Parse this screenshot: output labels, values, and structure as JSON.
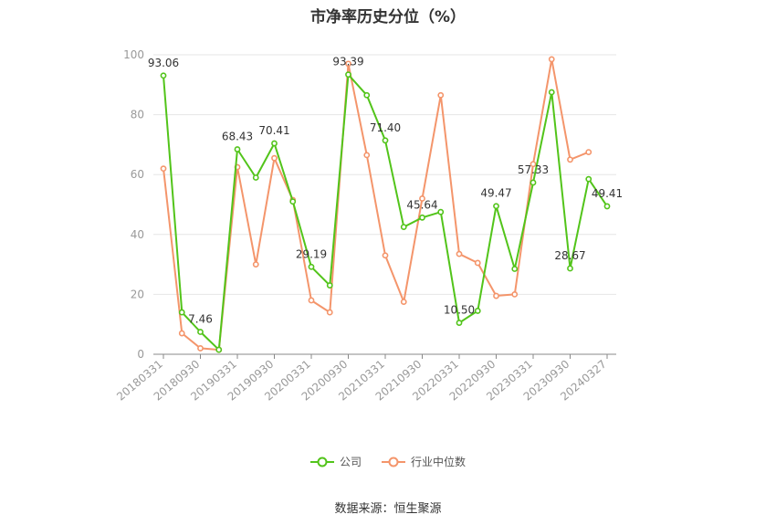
{
  "chart_data": {
    "type": "line",
    "title": "市净率历史分位（%）",
    "ylim": [
      0,
      100
    ],
    "yticks": [
      0,
      20,
      40,
      60,
      80,
      100
    ],
    "tick_labels": [
      "20180331",
      "20180930",
      "20190331",
      "20190930",
      "20200331",
      "20200930",
      "20210331",
      "20210930",
      "20220331",
      "20220930",
      "20230331",
      "20230930",
      "20240327"
    ],
    "grid": true,
    "legend_position": "bottom",
    "series": [
      {
        "name": "公司",
        "color": "#52c41a",
        "values": [
          93.06,
          14.0,
          7.46,
          1.5,
          68.43,
          59.0,
          70.41,
          51.0,
          29.19,
          23.0,
          93.39,
          86.5,
          71.4,
          42.5,
          45.64,
          47.5,
          10.5,
          14.5,
          49.47,
          28.5,
          57.33,
          87.5,
          28.67,
          58.5,
          49.41
        ],
        "labels": {
          "0": "93.06",
          "2": "7.46",
          "4": "68.43",
          "6": "70.41",
          "8": "29.19",
          "10": "93.39",
          "12": "71.40",
          "14": "45.64",
          "16": "10.50",
          "18": "49.47",
          "20": "57.33",
          "22": "28.67",
          "24": "49.41"
        }
      },
      {
        "name": "行业中位数",
        "color": "#f4956b",
        "values": [
          62.0,
          7.0,
          2.0,
          1.5,
          62.5,
          30.0,
          65.5,
          51.5,
          18.0,
          14.0,
          97.0,
          66.5,
          33.0,
          17.5,
          52.0,
          86.5,
          33.5,
          30.5,
          19.5,
          20.0,
          63.5,
          98.5,
          65.0,
          67.5,
          null
        ]
      }
    ]
  },
  "source": "数据来源：恒生聚源"
}
